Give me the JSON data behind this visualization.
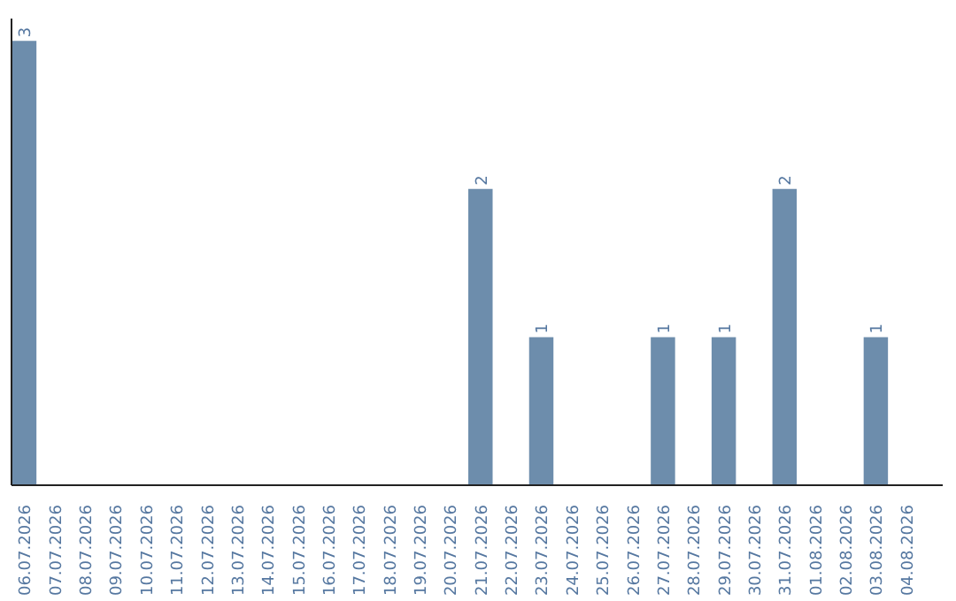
{
  "chart_data": {
    "type": "bar",
    "categories": [
      "06.07.2026",
      "07.07.2026",
      "08.07.2026",
      "09.07.2026",
      "10.07.2026",
      "11.07.2026",
      "12.07.2026",
      "13.07.2026",
      "14.07.2026",
      "15.07.2026",
      "16.07.2026",
      "17.07.2026",
      "18.07.2026",
      "19.07.2026",
      "20.07.2026",
      "21.07.2026",
      "22.07.2026",
      "23.07.2026",
      "24.07.2026",
      "25.07.2026",
      "26.07.2026",
      "27.07.2026",
      "28.07.2026",
      "29.07.2026",
      "30.07.2026",
      "31.07.2026",
      "01.08.2026",
      "02.08.2026",
      "03.08.2026",
      "04.08.2026"
    ],
    "values": [
      3,
      0,
      0,
      0,
      0,
      0,
      0,
      0,
      0,
      0,
      0,
      0,
      0,
      0,
      0,
      2,
      0,
      1,
      0,
      0,
      0,
      1,
      0,
      1,
      0,
      2,
      0,
      0,
      1,
      0
    ],
    "value_labels": [
      "3",
      null,
      null,
      null,
      null,
      null,
      null,
      null,
      null,
      null,
      null,
      null,
      null,
      null,
      null,
      "2",
      null,
      "1",
      null,
      null,
      null,
      "1",
      null,
      "1",
      null,
      "2",
      null,
      null,
      "1",
      null
    ],
    "color": "#6d8dac",
    "grid": false
  }
}
